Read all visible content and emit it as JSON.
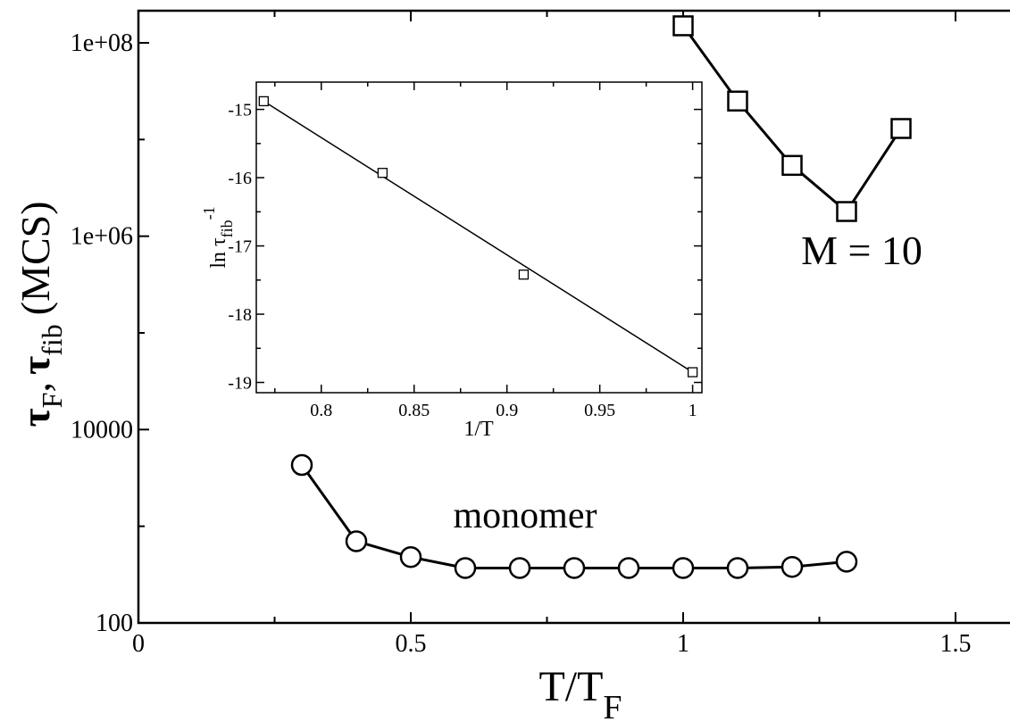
{
  "chart_data": [
    {
      "type": "line",
      "x_scale": "linear",
      "y_scale": "log",
      "xlim": [
        0,
        1.6
      ],
      "ylim": [
        100,
        200000000
      ],
      "xticks": [
        0,
        0.5,
        1,
        1.5
      ],
      "xtick_labels": [
        "0",
        "0.5",
        "1",
        "1.5"
      ],
      "yticks": [
        100,
        10000,
        1000000,
        100000000
      ],
      "ytick_labels": [
        "100",
        "10000",
        "1e+06",
        "1e+08"
      ],
      "xlabel": {
        "main": "T/T",
        "sub": "F"
      },
      "ylabel": {
        "tau1": "τ",
        "sub1": "F",
        "sep": ",",
        "tau2": "τ",
        "sub2": "fib",
        "unit": "(MCS)"
      },
      "series": [
        {
          "name": "monomer",
          "marker": "circle",
          "x": [
            0.3,
            0.4,
            0.5,
            0.6,
            0.7,
            0.8,
            0.9,
            1.0,
            1.1,
            1.2,
            1.3
          ],
          "y": [
            4300,
            700,
            480,
            370,
            370,
            370,
            370,
            370,
            370,
            380,
            430
          ]
        },
        {
          "name": "M = 10",
          "marker": "square",
          "x": [
            1.0,
            1.1,
            1.2,
            1.3,
            1.4
          ],
          "y": [
            150000000,
            25000000,
            5400000,
            1800000,
            13000000
          ]
        }
      ],
      "annotations": [
        "monomer",
        "M = 10"
      ]
    },
    {
      "type": "scatter",
      "x_scale": "linear",
      "y_scale": "linear",
      "xlim": [
        0.765,
        1.005
      ],
      "ylim": [
        -19.15,
        -14.6
      ],
      "xticks": [
        0.8,
        0.85,
        0.9,
        0.95,
        1.0
      ],
      "xtick_labels": [
        "0.8",
        "0.85",
        "0.9",
        "0.95",
        "1"
      ],
      "yticks": [
        -15,
        -16,
        -17,
        -18,
        -19
      ],
      "ytick_labels": [
        "-15",
        "-16",
        "-17",
        "-18",
        "-19"
      ],
      "xlabel": "1/T",
      "ylabel": {
        "main": "ln τ",
        "sub": "fib",
        "sup": "-1"
      },
      "points": {
        "x": [
          0.769,
          0.833,
          0.909,
          1.0
        ],
        "y": [
          -14.88,
          -15.93,
          -17.42,
          -18.85
        ]
      },
      "fit_line": {
        "x": [
          0.769,
          1.0
        ],
        "y": [
          -14.88,
          -18.85
        ]
      }
    }
  ]
}
